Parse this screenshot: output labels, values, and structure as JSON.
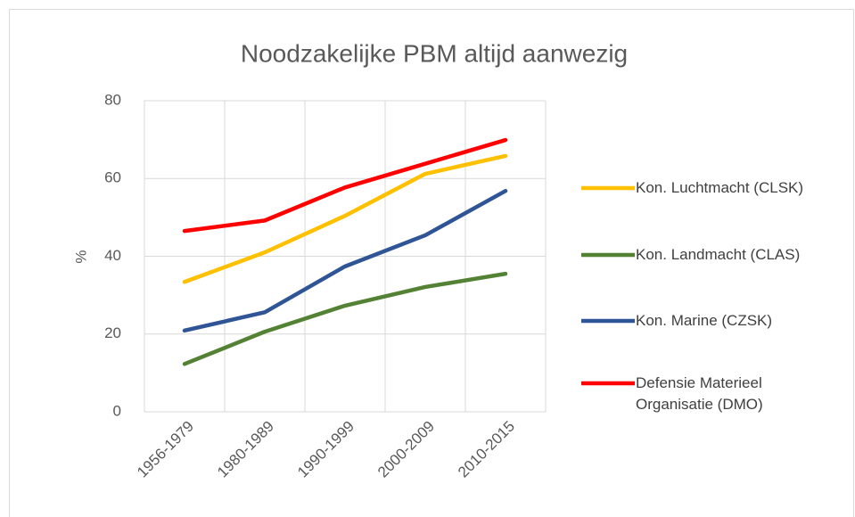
{
  "chart_data": {
    "type": "line",
    "title": "Noodzakelijke PBM altijd aanwezig",
    "y_label": "%",
    "categories": [
      "1956-1979",
      "1980-1989",
      "1990-1999",
      "2000-2009",
      "2010-2015"
    ],
    "series": [
      {
        "name": "Kon. Luchtmacht (CLSK)",
        "color": "#ffc000",
        "values": [
          33.4,
          41,
          50.4,
          61.2,
          65.8
        ]
      },
      {
        "name": "Kon. Landmacht (CLAS)",
        "color": "#548235",
        "values": [
          12.3,
          20.6,
          27.3,
          32.1,
          35.5
        ]
      },
      {
        "name": "Kon. Marine (CZSK)",
        "color": "#2f5597",
        "values": [
          20.9,
          25.6,
          37.4,
          45.4,
          56.8
        ]
      },
      {
        "name": "Defensie Materieel Organisatie (DMO)",
        "color": "#ff0000",
        "values": [
          46.5,
          49.2,
          57.7,
          63.8,
          69.9
        ]
      }
    ],
    "ylim": [
      0,
      80
    ],
    "yticks": [
      0,
      20,
      40,
      60,
      80
    ],
    "grid": true,
    "legend": "right"
  }
}
